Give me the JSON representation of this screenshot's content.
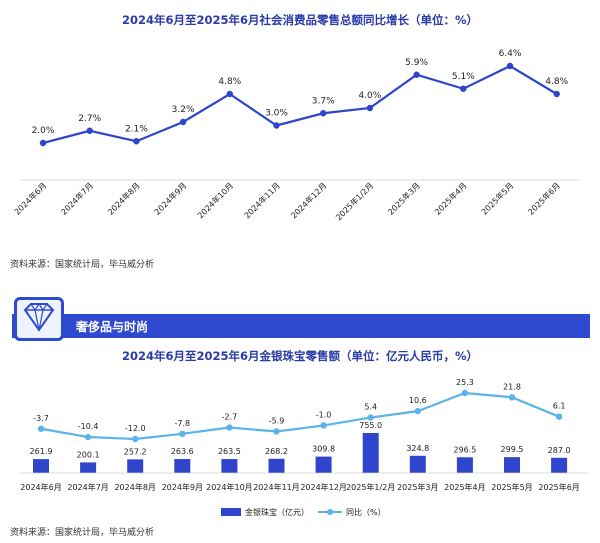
{
  "chart_data": [
    {
      "type": "line",
      "title": "2024年6月至2025年6月社会消费品零售总额同比增长（单位：%）",
      "categories": [
        "2024年6月",
        "2024年7月",
        "2024年8月",
        "2024年9月",
        "2024年10月",
        "2024年11月",
        "2024年12月",
        "2025年1/2月",
        "2025年3月",
        "2025年4月",
        "2025年5月",
        "2025年6月"
      ],
      "series": [
        {
          "values": [
            2.0,
            2.7,
            2.1,
            3.2,
            4.8,
            3.0,
            3.7,
            4.0,
            5.9,
            5.1,
            6.4,
            4.8
          ]
        }
      ],
      "value_labels": [
        "2.0%",
        "2.7%",
        "2.1%",
        "3.2%",
        "4.8%",
        "3.0%",
        "3.7%",
        "4.0%",
        "5.9%",
        "5.1%",
        "6.4%",
        "4.8%"
      ],
      "color": "#2f45cc",
      "grid": false
    },
    {
      "type": "bar",
      "title": "2024年6月至2025年6月金银珠宝零售额（单位：亿元人民币，%）",
      "categories": [
        "2024年6月",
        "2024年7月",
        "2024年8月",
        "2024年9月",
        "2024年10月",
        "2024年11月",
        "2024年12月",
        "2025年1/2月",
        "2025年3月",
        "2025年4月",
        "2025年5月",
        "2025年6月"
      ],
      "series": [
        {
          "name": "金银珠宝（亿元）",
          "type": "bar",
          "values": [
            261.9,
            200.1,
            257.2,
            263.6,
            263.5,
            268.2,
            309.8,
            755.0,
            324.8,
            296.5,
            299.5,
            287.0
          ],
          "color": "#2f45cc"
        },
        {
          "name": "同比（%）",
          "type": "line",
          "values": [
            -3.7,
            -10.4,
            -12.0,
            -7.8,
            -2.7,
            -5.9,
            -1.0,
            5.4,
            10.6,
            25.3,
            21.8,
            6.1
          ],
          "color": "#5ab3ea"
        }
      ],
      "bar_labels": [
        "261.9",
        "200.1",
        "257.2",
        "263.6",
        "263.5",
        "268.2",
        "309.8",
        "755.0",
        "324.8",
        "296.5",
        "299.5",
        "287.0"
      ],
      "line_labels": [
        "-3.7",
        "-10.4",
        "-12.0",
        "-7.8",
        "-2.7",
        "-5.9",
        "-1.0",
        "5.4",
        "10.6",
        "25.3",
        "21.8",
        "6.1"
      ],
      "legend": "bottom-center",
      "grid": false
    }
  ],
  "sources": {
    "chart1": "资料来源：国家统计局，毕马威分析",
    "chart2": "资料来源：国家统计局，毕马威分析"
  },
  "banner": {
    "title": "奢侈品与时尚",
    "icon": "diamond-icon"
  }
}
